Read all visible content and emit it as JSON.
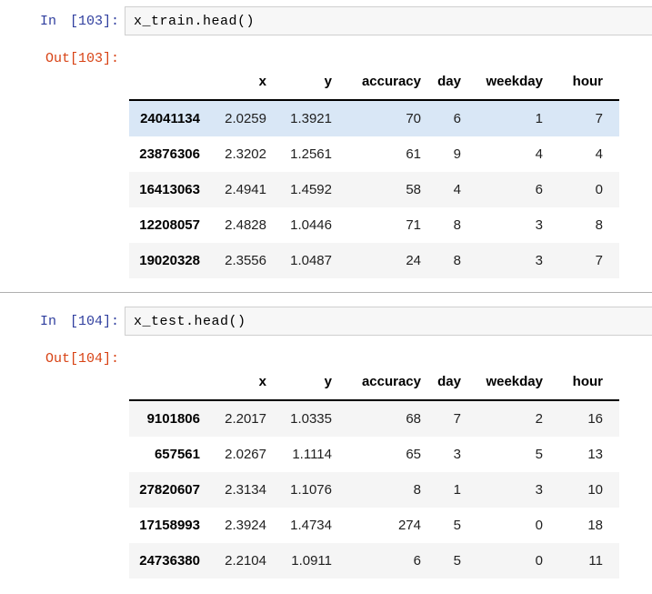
{
  "colors": {
    "in_prompt": "#303f9f",
    "out_prompt": "#d84315",
    "row_hover": "#d9e7f6",
    "row_stripe": "#f5f5f5",
    "input_bg": "#f7f7f7",
    "input_border": "#cfcfcf",
    "divider": "#b0b0b0",
    "header_border": "#000000"
  },
  "cells": [
    {
      "in_prompt": "In [103]:",
      "code": "x_train.head()",
      "out_prompt": "Out[103]:",
      "table": {
        "columns": [
          "",
          "x",
          "y",
          "accuracy",
          "day",
          "weekday",
          "hour"
        ],
        "rows": [
          {
            "index": "24041134",
            "values": [
              "2.0259",
              "1.3921",
              "70",
              "6",
              "1",
              "7"
            ],
            "highlight": true
          },
          {
            "index": "23876306",
            "values": [
              "2.3202",
              "1.2561",
              "61",
              "9",
              "4",
              "4"
            ],
            "highlight": false
          },
          {
            "index": "16413063",
            "values": [
              "2.4941",
              "1.4592",
              "58",
              "4",
              "6",
              "0"
            ],
            "highlight": false
          },
          {
            "index": "12208057",
            "values": [
              "2.4828",
              "1.0446",
              "71",
              "8",
              "3",
              "8"
            ],
            "highlight": false
          },
          {
            "index": "19020328",
            "values": [
              "2.3556",
              "1.0487",
              "24",
              "8",
              "3",
              "7"
            ],
            "highlight": false
          }
        ]
      }
    },
    {
      "in_prompt": "In [104]:",
      "code": "x_test.head()",
      "out_prompt": "Out[104]:",
      "table": {
        "columns": [
          "",
          "x",
          "y",
          "accuracy",
          "day",
          "weekday",
          "hour"
        ],
        "rows": [
          {
            "index": "9101806",
            "values": [
              "2.2017",
              "1.0335",
              "68",
              "7",
              "2",
              "16"
            ],
            "highlight": false
          },
          {
            "index": "657561",
            "values": [
              "2.0267",
              "1.1114",
              "65",
              "3",
              "5",
              "13"
            ],
            "highlight": false
          },
          {
            "index": "27820607",
            "values": [
              "2.3134",
              "1.1076",
              "8",
              "1",
              "3",
              "10"
            ],
            "highlight": false
          },
          {
            "index": "17158993",
            "values": [
              "2.3924",
              "1.4734",
              "274",
              "5",
              "0",
              "18"
            ],
            "highlight": false
          },
          {
            "index": "24736380",
            "values": [
              "2.2104",
              "1.0911",
              "6",
              "5",
              "0",
              "11"
            ],
            "highlight": false
          }
        ]
      }
    }
  ]
}
